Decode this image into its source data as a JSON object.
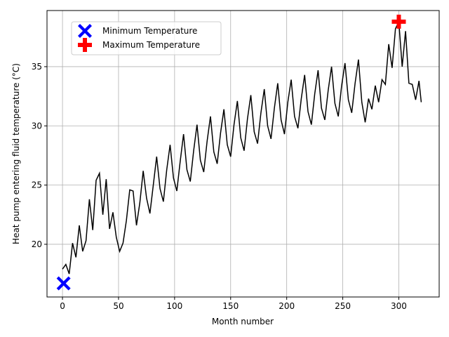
{
  "chart_data": {
    "type": "line",
    "xlabel": "Month number",
    "ylabel": "Heat pump entering fluid temperature (°C)",
    "xlim": [
      -13.8,
      336
    ],
    "ylim": [
      15.55,
      39.74
    ],
    "xticks": [
      0,
      50,
      100,
      150,
      200,
      250,
      300
    ],
    "yticks": [
      20,
      25,
      30,
      35
    ],
    "grid": true,
    "legend": "upper left",
    "series": [
      {
        "color": "#000000",
        "x": [
          0,
          3,
          6,
          9,
          12,
          15,
          18,
          21,
          24,
          27,
          30,
          33,
          36,
          39,
          42,
          45,
          48,
          51,
          54,
          57,
          60,
          63,
          66,
          69,
          72,
          75,
          78,
          81,
          84,
          87,
          90,
          93,
          96,
          99,
          102,
          105,
          108,
          111,
          114,
          117,
          120,
          123,
          126,
          129,
          132,
          135,
          138,
          141,
          144,
          147,
          150,
          153,
          156,
          159,
          162,
          165,
          168,
          171,
          174,
          177,
          180,
          183,
          186,
          189,
          192,
          195,
          198,
          201,
          204,
          207,
          210,
          213,
          216,
          219,
          222,
          225,
          228,
          231,
          234,
          237,
          240,
          243,
          246,
          249,
          252,
          255,
          258,
          261,
          264,
          267,
          270,
          273,
          276,
          279,
          282,
          285,
          288,
          291,
          294,
          297,
          300,
          303,
          306,
          309,
          312,
          315,
          318,
          320
        ],
        "values": [
          17.9,
          18.3,
          17.5,
          20.1,
          18.9,
          21.6,
          19.4,
          20.3,
          23.8,
          21.2,
          25.4,
          26.0,
          22.5,
          25.5,
          21.3,
          22.7,
          20.6,
          19.4,
          20.1,
          22.0,
          24.6,
          24.5,
          21.6,
          23.5,
          26.2,
          23.9,
          22.6,
          25.0,
          27.4,
          24.7,
          23.6,
          26.3,
          28.4,
          25.6,
          24.5,
          27.0,
          29.3,
          26.3,
          25.3,
          27.9,
          30.1,
          27.1,
          26.1,
          28.7,
          30.8,
          27.8,
          26.8,
          29.4,
          31.4,
          28.4,
          27.4,
          30.1,
          32.1,
          29.0,
          27.9,
          30.6,
          32.6,
          29.5,
          28.5,
          31.1,
          33.1,
          30.0,
          28.9,
          31.5,
          33.6,
          30.5,
          29.3,
          32.0,
          33.9,
          30.8,
          29.8,
          32.3,
          34.3,
          31.2,
          30.1,
          32.7,
          34.7,
          31.5,
          30.5,
          33.0,
          35.0,
          31.9,
          30.8,
          33.4,
          35.3,
          32.2,
          31.1,
          33.6,
          35.6,
          32.0,
          30.3,
          32.3,
          31.4,
          33.4,
          32.0,
          33.9,
          33.5,
          36.9,
          34.9,
          38.2,
          38.8,
          35.0,
          38.0,
          33.6,
          33.5,
          32.2,
          33.8,
          32.0
        ]
      }
    ],
    "markers": [
      {
        "name": "Minimum Temperature",
        "color": "#0000ff",
        "marker": "X",
        "x": [
          1
        ],
        "values": [
          16.7
        ]
      },
      {
        "name": "Maximum Temperature",
        "color": "#ff0000",
        "marker": "P",
        "x": [
          300
        ],
        "values": [
          38.8
        ]
      }
    ]
  }
}
